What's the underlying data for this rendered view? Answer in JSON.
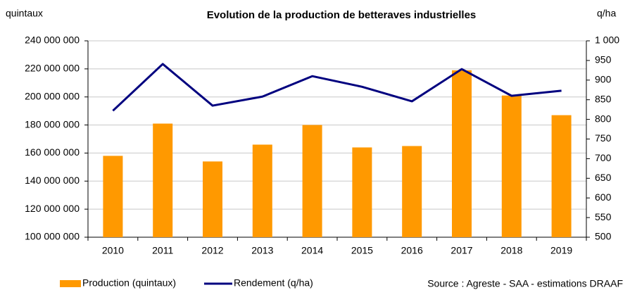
{
  "chart_data": {
    "type": "bar-line",
    "title": "Evolution de la production de betteraves industrielles",
    "y_label": "quintaux",
    "y2_label": "q/ha",
    "source": "Source : Agreste - SAA - estimations DRAAF",
    "categories": [
      "2010",
      "2011",
      "2012",
      "2013",
      "2014",
      "2015",
      "2016",
      "2017",
      "2018",
      "2019"
    ],
    "series": [
      {
        "name": "Production (quintaux)",
        "type": "bar",
        "color": "#ff9900",
        "values": [
          158000000,
          181000000,
          154000000,
          166000000,
          180000000,
          164000000,
          165000000,
          219000000,
          201000000,
          187000000
        ]
      },
      {
        "name": "Rendement (q/ha)",
        "type": "line",
        "axis": "y2",
        "color": "#00007f",
        "values": [
          822,
          941,
          835,
          858,
          910,
          883,
          846,
          928,
          860,
          873
        ]
      }
    ],
    "ylim": [
      100000000,
      240000000
    ],
    "yticks": [
      {
        "value": 100000000,
        "label": "100 000 000"
      },
      {
        "value": 120000000,
        "label": "120 000 000"
      },
      {
        "value": 140000000,
        "label": "140 000 000"
      },
      {
        "value": 160000000,
        "label": "160 000 000"
      },
      {
        "value": 180000000,
        "label": "180 000 000"
      },
      {
        "value": 200000000,
        "label": "200 000 000"
      },
      {
        "value": 220000000,
        "label": "220 000 000"
      },
      {
        "value": 240000000,
        "label": "240 000 000"
      }
    ],
    "y2lim": [
      500,
      1000
    ],
    "y2ticks": [
      500,
      550,
      600,
      650,
      700,
      750,
      800,
      850,
      900,
      950,
      {
        "value": 1000,
        "label": "1 000"
      }
    ],
    "grid": true
  }
}
